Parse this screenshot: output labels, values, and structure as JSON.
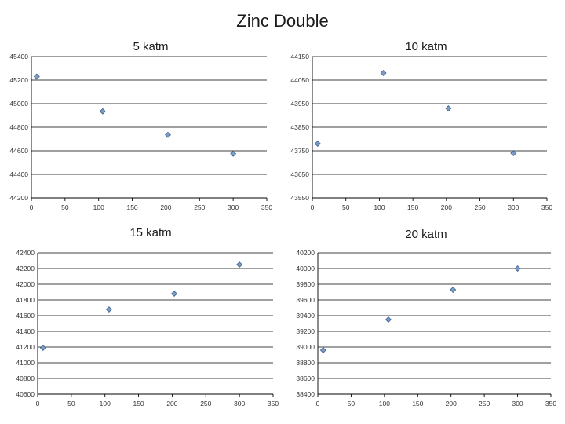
{
  "title": "Zinc Double",
  "chart_data": [
    {
      "type": "scatter",
      "title": "5 katm",
      "xlim": [
        0,
        350
      ],
      "xticks": [
        0,
        50,
        100,
        150,
        200,
        250,
        300,
        350
      ],
      "ylim": [
        44200,
        45400
      ],
      "yticks": [
        44200,
        44400,
        44600,
        44800,
        45000,
        45200,
        45400
      ],
      "x": [
        8,
        106,
        203,
        300
      ],
      "y": [
        45230,
        44935,
        44735,
        44575
      ],
      "grid": true,
      "legend": "none"
    },
    {
      "type": "scatter",
      "title": "10 katm",
      "xlim": [
        0,
        350
      ],
      "xticks": [
        0,
        50,
        100,
        150,
        200,
        250,
        300,
        350
      ],
      "ylim": [
        43550,
        44150
      ],
      "yticks": [
        43550,
        43650,
        43750,
        43850,
        43950,
        44050,
        44150
      ],
      "x": [
        8,
        106,
        203,
        300
      ],
      "y": [
        43780,
        44080,
        43930,
        43740
      ],
      "grid": true,
      "legend": "none"
    },
    {
      "type": "scatter",
      "title": "15 katm",
      "xlim": [
        0,
        350
      ],
      "xticks": [
        0,
        50,
        100,
        150,
        200,
        250,
        300,
        350
      ],
      "ylim": [
        40600,
        42400
      ],
      "yticks": [
        40600,
        40800,
        41000,
        41200,
        41400,
        41600,
        41800,
        42000,
        42200,
        42400
      ],
      "x": [
        8,
        106,
        203,
        300
      ],
      "y": [
        41190,
        41680,
        41880,
        42250
      ],
      "grid": true,
      "legend": "none"
    },
    {
      "type": "scatter",
      "title": "20 katm",
      "xlim": [
        0,
        350
      ],
      "xticks": [
        0,
        50,
        100,
        150,
        200,
        250,
        300,
        350
      ],
      "ylim": [
        38400,
        40200
      ],
      "yticks": [
        38400,
        38600,
        38800,
        39000,
        39200,
        39400,
        39600,
        39800,
        40000,
        40200
      ],
      "x": [
        8,
        106,
        203,
        300
      ],
      "y": [
        38960,
        39350,
        39730,
        40000
      ],
      "grid": true,
      "legend": "none"
    }
  ]
}
